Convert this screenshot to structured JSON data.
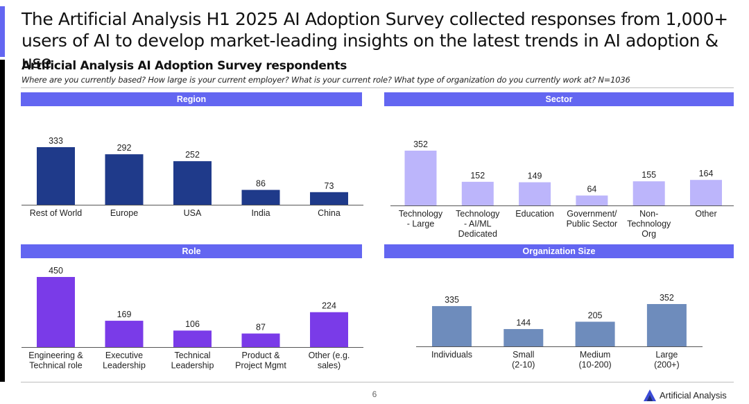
{
  "headline": "The Artificial Analysis H1 2025 AI Adoption Survey collected responses from 1,000+ users of AI to develop market-leading insights on the latest trends in AI adoption & use",
  "section": {
    "title": "Artificial Analysis AI Adoption Survey respondents",
    "subtitle": "Where are you currently based? How large is your current employer? What is your current role? What type of organization do you currently work at? N=1036"
  },
  "footer": {
    "page_number": "6",
    "brand": "Artificial Analysis",
    "brand_icon": "artificial-analysis-logo-icon"
  },
  "colors": {
    "header": "#6366f1",
    "region": "#1f3a8a",
    "sector": "#bcb5fb",
    "role": "#7a3be8",
    "org_size": "#6e8cbc"
  },
  "chart_data": [
    {
      "type": "bar",
      "title": "Region",
      "categories": [
        [
          "Rest of World"
        ],
        [
          "Europe"
        ],
        [
          "USA"
        ],
        [
          "India"
        ],
        [
          "China"
        ]
      ],
      "values": [
        333,
        292,
        252,
        86,
        73
      ],
      "xlabel": "",
      "ylabel": "",
      "ylim": [
        0,
        333
      ],
      "grid": false,
      "legend": "none"
    },
    {
      "type": "bar",
      "title": "Sector",
      "categories": [
        [
          "Technology",
          "- Large"
        ],
        [
          "Technology",
          "- AI/ML",
          "Dedicated"
        ],
        [
          "Education"
        ],
        [
          "Government/",
          "Public Sector"
        ],
        [
          "Non-",
          "Technology",
          "Org"
        ],
        [
          "Other"
        ]
      ],
      "values": [
        352,
        152,
        149,
        64,
        155,
        164
      ],
      "xlabel": "",
      "ylabel": "",
      "ylim": [
        0,
        352
      ],
      "grid": false,
      "legend": "none"
    },
    {
      "type": "bar",
      "title": "Role",
      "categories": [
        [
          "Engineering &",
          "Technical role"
        ],
        [
          "Executive",
          "Leadership"
        ],
        [
          "Technical",
          "Leadership"
        ],
        [
          "Product &",
          "Project Mgmt"
        ],
        [
          "Other (e.g.",
          "sales)"
        ]
      ],
      "values": [
        450,
        169,
        106,
        87,
        224
      ],
      "xlabel": "",
      "ylabel": "",
      "ylim": [
        0,
        450
      ],
      "grid": false,
      "legend": "none"
    },
    {
      "type": "bar",
      "title": "Organization Size",
      "categories": [
        [
          "Individuals"
        ],
        [
          "Small",
          "(2-10)"
        ],
        [
          "Medium",
          "(10-200)"
        ],
        [
          "Large",
          "(200+)"
        ]
      ],
      "values": [
        335,
        144,
        205,
        352
      ],
      "xlabel": "",
      "ylabel": "",
      "ylim": [
        0,
        352
      ],
      "grid": false,
      "legend": "none"
    }
  ]
}
